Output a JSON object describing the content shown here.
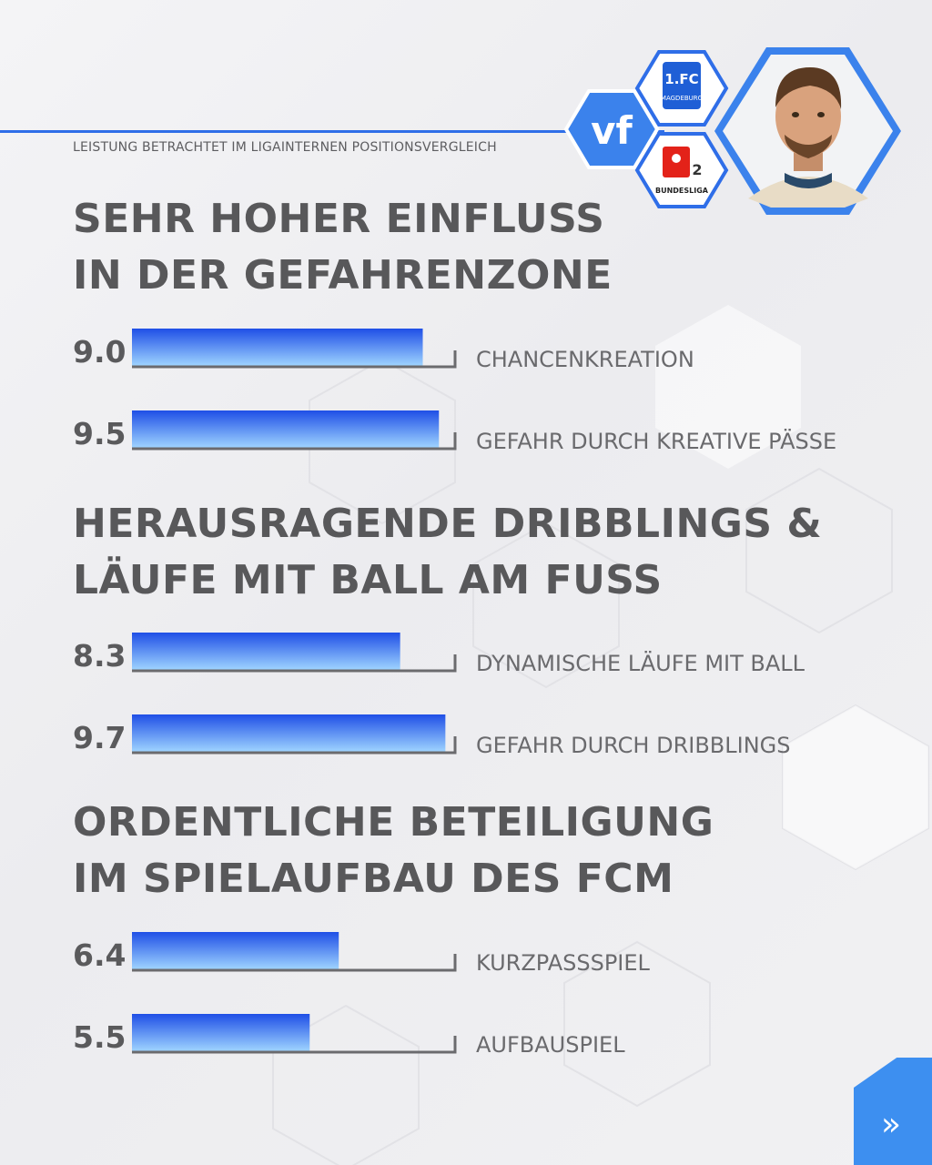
{
  "header": {
    "subtitle": "LEISTUNG BETRACHTET IM LIGAINTERNEN POSITIONSVERGLEICH",
    "badge_text": "vf",
    "club_logo_text": "1.FC",
    "club_logo_sub": "MAGDEBURG",
    "league_logo_text": "BUNDESLIGA",
    "league_logo_number": "2"
  },
  "sections": [
    {
      "title_line1": "SEHR HOHER EINFLUSS",
      "title_line2": "IN DER GEFAHRENZONE"
    },
    {
      "title_line1": "HERAUSRAGENDE DRIBBLINGS &",
      "title_line2": "LÄUFE MIT BALL AM FUSS"
    },
    {
      "title_line1": "ORDENTLICHE BETEILIGUNG",
      "title_line2": "IM SPIELAUFBAU DES FCM"
    }
  ],
  "colors": {
    "accent": "#2f6ee8",
    "bar_top": "#1f4fe6",
    "bar_bottom": "#9fd4ff",
    "text": "#58585a"
  },
  "chart_data": {
    "type": "bar",
    "orientation": "horizontal",
    "xlim": [
      0,
      10
    ],
    "categories": [
      "CHANCENKREATION",
      "GEFAHR DURCH KREATIVE PÄSSE",
      "DYNAMISCHE LÄUFE MIT BALL",
      "GEFAHR DURCH DRIBBLINGS",
      "KURZPASSSPIEL",
      "AUFBAUSPIEL"
    ],
    "values": [
      9.0,
      9.5,
      8.3,
      9.7,
      6.4,
      5.5
    ],
    "value_labels": [
      "9.0",
      "9.5",
      "8.3",
      "9.7",
      "6.4",
      "5.5"
    ]
  },
  "nav": {
    "next_icon": "fast-forward-icon",
    "next_glyph": "»"
  }
}
